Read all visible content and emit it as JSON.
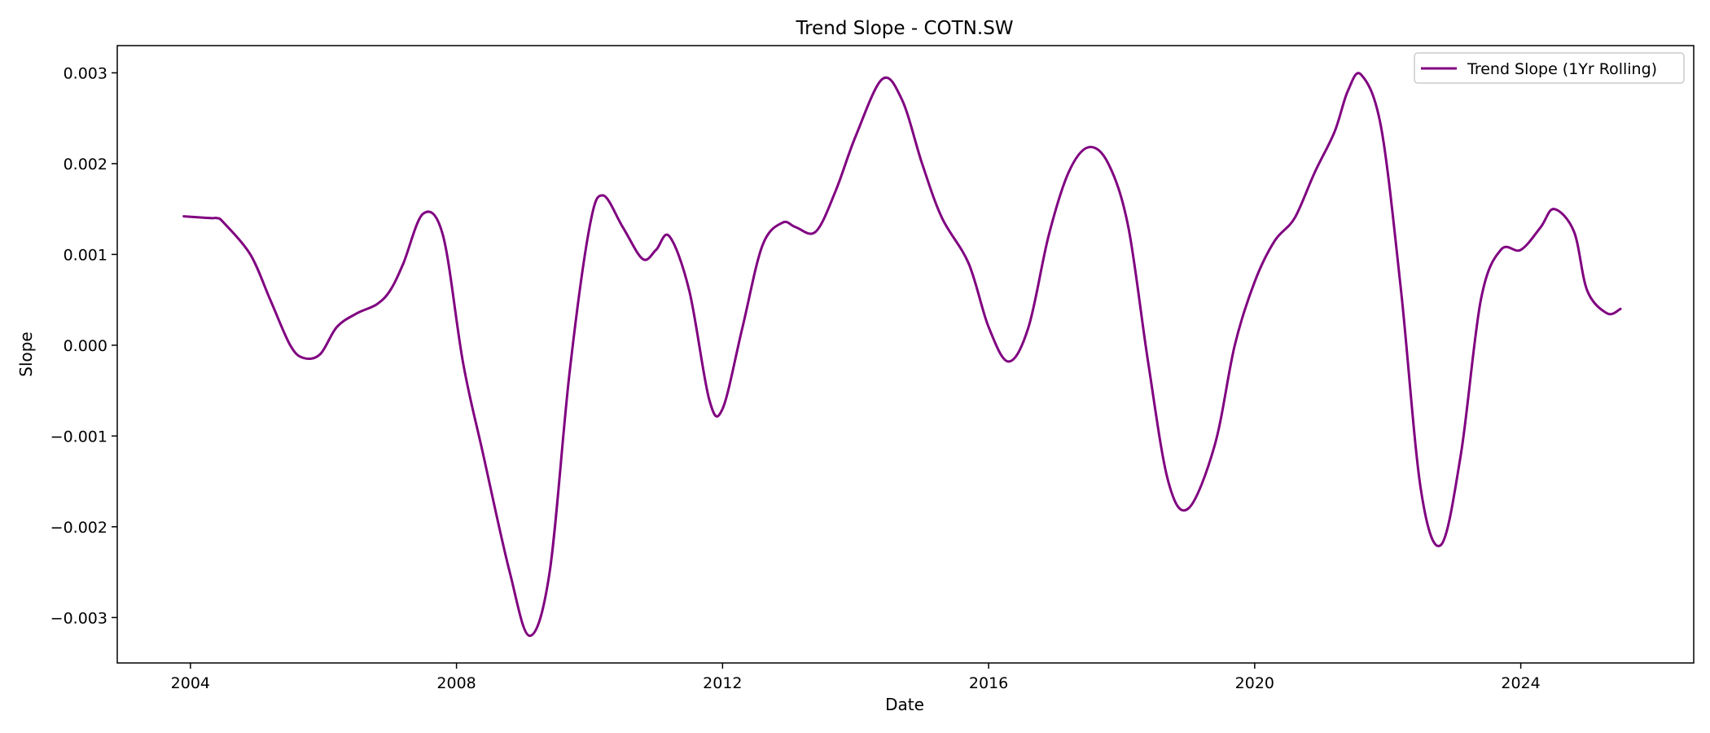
{
  "chart_data": {
    "type": "line",
    "title": "Trend Slope - COTN.SW",
    "xlabel": "Date",
    "ylabel": "Slope",
    "x_ticks": [
      "2004",
      "2008",
      "2012",
      "2016",
      "2020",
      "2024"
    ],
    "y_ticks": [
      "0.003",
      "0.002",
      "0.001",
      "0.000",
      "−0.001",
      "−0.002",
      "−0.003"
    ],
    "y_tick_values": [
      0.003,
      0.002,
      0.001,
      0.0,
      -0.001,
      -0.002,
      -0.003
    ],
    "x_tick_years": [
      2004,
      2008,
      2012,
      2016,
      2020,
      2024
    ],
    "xlim": [
      2002.9,
      2026.6
    ],
    "ylim": [
      -0.0035,
      0.0033
    ],
    "grid": false,
    "legend_position": "top-right",
    "series": [
      {
        "name": "Trend Slope (1Yr Rolling)",
        "color": "#800080",
        "x": [
          2003.9,
          2004.3,
          2004.4,
          2004.5,
          2004.9,
          2005.2,
          2005.5,
          2005.7,
          2005.95,
          2006.2,
          2006.5,
          2006.8,
          2007.0,
          2007.2,
          2007.5,
          2007.8,
          2008.1,
          2008.4,
          2008.8,
          2009.1,
          2009.4,
          2009.7,
          2010.0,
          2010.2,
          2010.5,
          2010.8,
          2011.0,
          2011.2,
          2011.5,
          2011.8,
          2012.0,
          2012.3,
          2012.6,
          2012.9,
          2013.1,
          2013.4,
          2013.7,
          2014.0,
          2014.4,
          2014.7,
          2015.0,
          2015.3,
          2015.7,
          2016.0,
          2016.3,
          2016.6,
          2016.9,
          2017.2,
          2017.5,
          2017.8,
          2018.1,
          2018.4,
          2018.7,
          2019.0,
          2019.4,
          2019.7,
          2020.0,
          2020.3,
          2020.6,
          2020.9,
          2021.2,
          2021.4,
          2021.6,
          2021.9,
          2022.2,
          2022.5,
          2022.8,
          2023.1,
          2023.4,
          2023.7,
          2024.0,
          2024.3,
          2024.5,
          2024.8,
          2025.0,
          2025.3,
          2025.5
        ],
        "values": [
          0.00142,
          0.0014,
          0.0014,
          0.00135,
          0.001,
          0.0005,
          0.0,
          -0.00014,
          -0.0001,
          0.0002,
          0.00035,
          0.00045,
          0.0006,
          0.0009,
          0.00145,
          0.0012,
          -0.0002,
          -0.0012,
          -0.0025,
          -0.0032,
          -0.0025,
          -0.0003,
          0.0013,
          0.00165,
          0.0013,
          0.00095,
          0.00105,
          0.0012,
          0.0006,
          -0.0006,
          -0.0007,
          0.0002,
          0.0011,
          0.00135,
          0.0013,
          0.00125,
          0.0017,
          0.0023,
          0.00293,
          0.0027,
          0.002,
          0.0014,
          0.0009,
          0.0002,
          -0.00018,
          0.0002,
          0.0012,
          0.0019,
          0.00218,
          0.002,
          0.0013,
          -0.0002,
          -0.0015,
          -0.0018,
          -0.0011,
          0.0,
          0.0007,
          0.00115,
          0.0014,
          0.0019,
          0.00235,
          0.0028,
          0.00298,
          0.0024,
          0.0006,
          -0.0016,
          -0.0022,
          -0.0012,
          0.0005,
          0.00105,
          0.00105,
          0.0013,
          0.0015,
          0.00125,
          0.0006,
          0.00035,
          0.0004
        ]
      }
    ]
  }
}
